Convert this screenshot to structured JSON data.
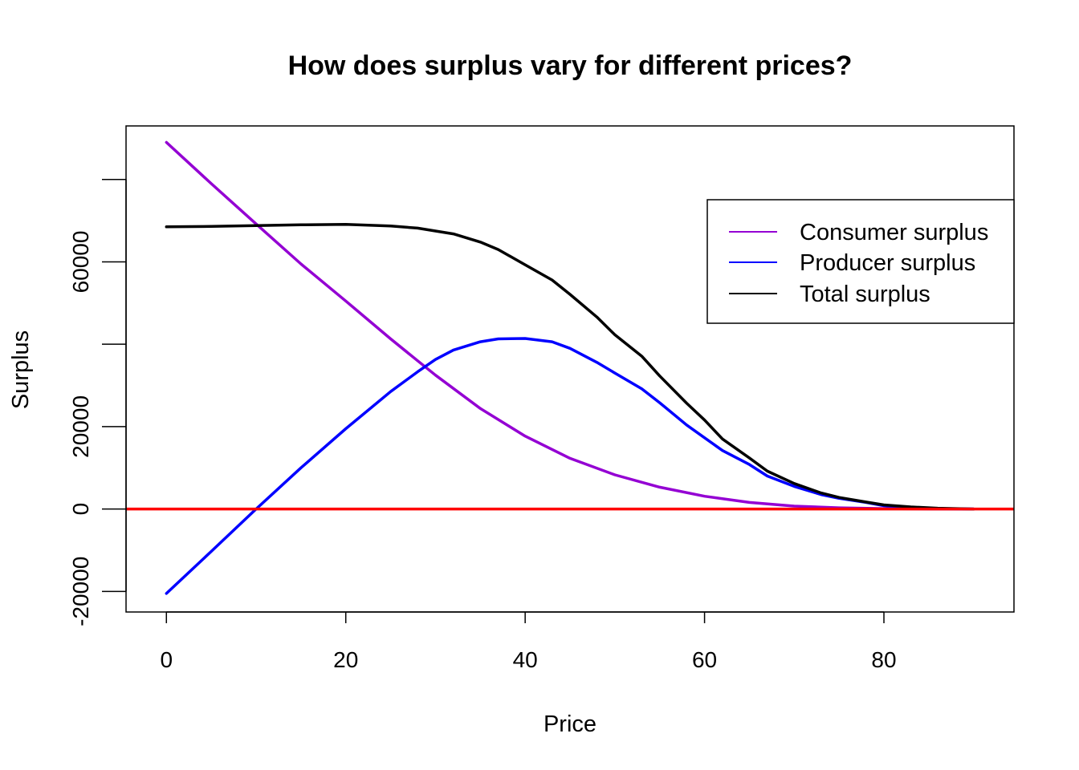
{
  "chart_data": {
    "type": "line",
    "title": "How does surplus vary for different prices?",
    "xlabel": "Price",
    "ylabel": "Surplus",
    "xlim": [
      -4.5,
      94.5
    ],
    "ylim": [
      -25000,
      93000
    ],
    "x_ticks": [
      0,
      20,
      40,
      60,
      80
    ],
    "x_tick_labels": [
      "0",
      "20",
      "40",
      "60",
      "80"
    ],
    "y_ticks": [
      -20000,
      0,
      20000,
      40000,
      60000,
      80000
    ],
    "y_tick_labels": [
      "-20000",
      "0",
      "20000",
      "",
      "60000",
      ""
    ],
    "legend_position": "top-right",
    "hline": {
      "y": 0,
      "color": "#ff0000"
    },
    "series": [
      {
        "name": "Consumer surplus",
        "color": "#9400d3",
        "x": [
          0,
          5,
          10,
          15,
          20,
          25,
          28,
          30,
          35,
          40,
          45,
          50,
          55,
          60,
          65,
          70,
          75,
          80,
          85,
          90
        ],
        "y": [
          89000,
          79000,
          69200,
          59500,
          50500,
          41300,
          36000,
          32500,
          24400,
          17700,
          12300,
          8300,
          5300,
          3100,
          1600,
          700,
          300,
          100,
          30,
          0
        ]
      },
      {
        "name": "Producer surplus",
        "color": "#0000ff",
        "x": [
          0,
          5,
          10,
          15,
          20,
          25,
          28,
          30,
          32,
          35,
          37,
          40,
          43,
          45,
          48,
          50,
          53,
          55,
          58,
          60,
          62,
          65,
          67,
          70,
          73,
          75,
          78,
          80,
          83,
          86,
          90
        ],
        "y": [
          -20500,
          -10300,
          0,
          10000,
          19500,
          28500,
          33300,
          36300,
          38600,
          40600,
          41300,
          41400,
          40600,
          39000,
          35600,
          33000,
          29200,
          25800,
          20400,
          17300,
          14200,
          10800,
          8000,
          5500,
          3500,
          2600,
          1600,
          800,
          400,
          100,
          0
        ]
      },
      {
        "name": "Total surplus",
        "color": "#000000",
        "x": [
          0,
          5,
          10,
          15,
          20,
          25,
          28,
          30,
          32,
          35,
          37,
          40,
          43,
          45,
          48,
          50,
          53,
          55,
          58,
          60,
          62,
          65,
          67,
          70,
          73,
          75,
          78,
          80,
          83,
          86,
          90
        ],
        "y": [
          68500,
          68600,
          68800,
          69000,
          69100,
          68700,
          68200,
          67500,
          66800,
          64800,
          63000,
          59300,
          55600,
          52100,
          46600,
          42300,
          37100,
          32300,
          25700,
          21600,
          17000,
          12400,
          9200,
          6200,
          3900,
          2800,
          1700,
          1000,
          500,
          200,
          0
        ]
      }
    ]
  }
}
